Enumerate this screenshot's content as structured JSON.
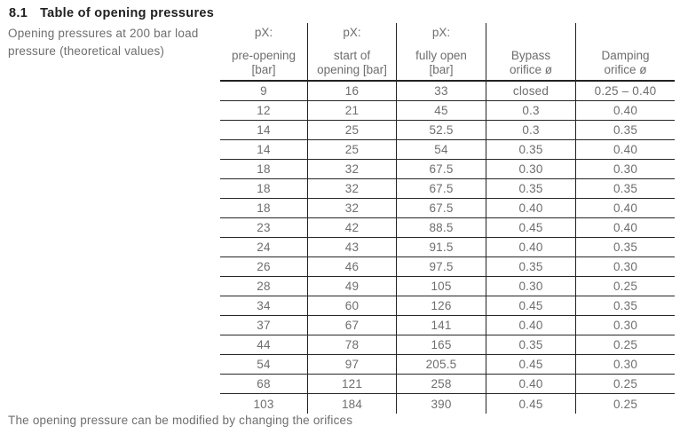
{
  "page": {
    "section_number": "8.1",
    "section_title": "Table of opening pressures",
    "description": [
      "Opening pressures at 200 bar load",
      "pressure (theoretical values)"
    ],
    "footer_note": "The opening pressure can be modified by changing the orifices"
  },
  "table": {
    "headers": [
      {
        "prefix": "pX:",
        "lines": [
          "pre-opening",
          "[bar]"
        ]
      },
      {
        "prefix": "pX:",
        "lines": [
          "start of",
          "opening [bar]"
        ]
      },
      {
        "prefix": "pX:",
        "lines": [
          "fully open",
          "[bar]"
        ]
      },
      {
        "prefix": "",
        "lines": [
          "Bypass",
          "orifice ø"
        ]
      },
      {
        "prefix": "",
        "lines": [
          "Damping",
          "orifice ø"
        ]
      }
    ],
    "rows": [
      [
        "9",
        "16",
        "33",
        "closed",
        "0.25 – 0.40"
      ],
      [
        "12",
        "21",
        "45",
        "0.3",
        "0.40"
      ],
      [
        "14",
        "25",
        "52.5",
        "0.3",
        "0.35"
      ],
      [
        "14",
        "25",
        "54",
        "0.35",
        "0.40"
      ],
      [
        "18",
        "32",
        "67.5",
        "0.30",
        "0.30"
      ],
      [
        "18",
        "32",
        "67.5",
        "0.35",
        "0.35"
      ],
      [
        "18",
        "32",
        "67.5",
        "0.40",
        "0.40"
      ],
      [
        "23",
        "42",
        "88.5",
        "0.45",
        "0.40"
      ],
      [
        "24",
        "43",
        "91.5",
        "0.40",
        "0.35"
      ],
      [
        "26",
        "46",
        "97.5",
        "0.35",
        "0.30"
      ],
      [
        "28",
        "49",
        "105",
        "0.30",
        "0.25"
      ],
      [
        "34",
        "60",
        "126",
        "0.45",
        "0.35"
      ],
      [
        "37",
        "67",
        "141",
        "0.40",
        "0.30"
      ],
      [
        "44",
        "78",
        "165",
        "0.35",
        "0.25"
      ],
      [
        "54",
        "97",
        "205.5",
        "0.45",
        "0.30"
      ],
      [
        "68",
        "121",
        "258",
        "0.40",
        "0.25"
      ],
      [
        "103",
        "184",
        "390",
        "0.45",
        "0.25"
      ]
    ]
  },
  "colors": {
    "background": "#ffffff",
    "heading_text": "#1f1f1f",
    "body_text_gray": "#6e6e6e",
    "table_line": "#222222"
  }
}
